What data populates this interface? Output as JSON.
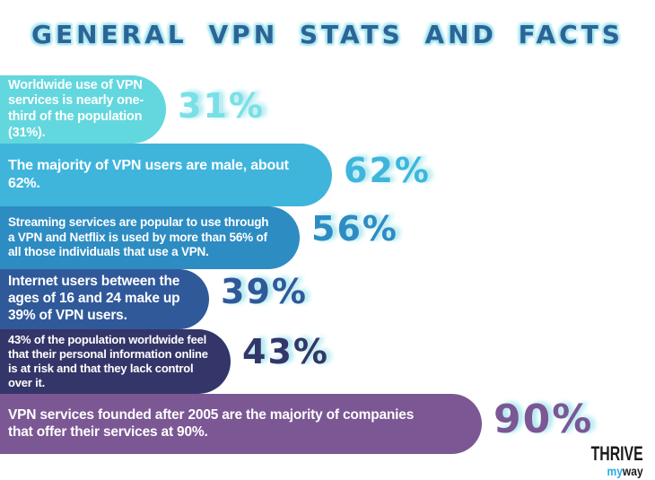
{
  "title": "GENERAL VPN STATS AND FACTS",
  "colors": {
    "background": "#FFFFFF",
    "title": "#2D6497",
    "glow": "#A5E6EF",
    "bar_text": "#FFFFFF"
  },
  "bars": [
    {
      "text": "Worldwide use of VPN\nservices is nearly one-\nthird of the population\n(31%).",
      "label": "31%",
      "value": 31,
      "color": "#62D7DE",
      "label_color": "#79E0E6"
    },
    {
      "text": "The majority of VPN users are male, about\n62%.",
      "label": "62%",
      "value": 62,
      "color": "#3FB5DC",
      "label_color": "#3FB5DC"
    },
    {
      "text": "Streaming services are popular to use through\na VPN and Netflix is used by more than 56% of\nall those individuals that use a VPN.",
      "label": "56%",
      "value": 56,
      "color": "#2D8CC2",
      "label_color": "#2D8CC2"
    },
    {
      "text": "Internet users between the\nages of 16 and 24 make up\n39% of VPN users.",
      "label": "39%",
      "value": 39,
      "color": "#30599A",
      "label_color": "#30599A"
    },
    {
      "text": "43% of the population worldwide feel\nthat their personal information online\nis at risk and that they lack control\nover it.",
      "label": "43%",
      "value": 43,
      "color": "#343669",
      "label_color": "#343669"
    },
    {
      "text": "VPN services founded after 2005 are the majority of companies\nthat offer their services at 90%.",
      "label": "90%",
      "value": 90,
      "color": "#7B5794",
      "label_color": "#7B5794"
    }
  ],
  "logo": {
    "top": "THRIVE",
    "my": "my",
    "way": "way",
    "accent": "#29ABE2"
  },
  "chart_data": {
    "type": "bar",
    "orientation": "horizontal",
    "title": "GENERAL VPN STATS AND FACTS",
    "categories": [
      "Worldwide use of VPN services is nearly one-third of the population (31%).",
      "The majority of VPN users are male, about 62%.",
      "Streaming services are popular to use through a VPN and Netflix is used by more than 56% of all those individuals that use a VPN.",
      "Internet users between the ages of 16 and 24 make up 39% of VPN users.",
      "43% of the population worldwide feel that their personal information online is at risk and that they lack control over it.",
      "VPN services founded after 2005 are the majority of companies that offer their services at 90%."
    ],
    "values": [
      31,
      62,
      56,
      39,
      43,
      90
    ],
    "unit": "%",
    "xlim": [
      0,
      100
    ],
    "grid": false,
    "legend": false,
    "bar_colors": [
      "#62D7DE",
      "#3FB5DC",
      "#2D8CC2",
      "#30599A",
      "#343669",
      "#7B5794"
    ],
    "value_labels": [
      "31%",
      "62%",
      "56%",
      "39%",
      "43%",
      "90%"
    ]
  }
}
